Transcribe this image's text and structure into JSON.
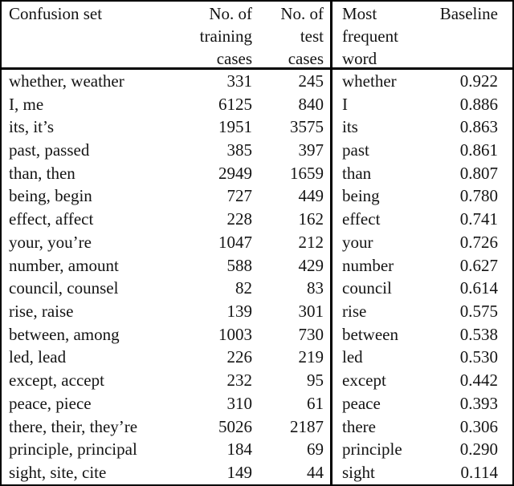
{
  "colors": {
    "background": "#ffffff",
    "text": "#141414",
    "border": "#000000"
  },
  "table": {
    "header": {
      "confusion_set": "Confusion set",
      "no_training": [
        "No. of",
        "training",
        "cases"
      ],
      "no_test": [
        "No. of",
        "test",
        "cases"
      ],
      "most_frequent": [
        "Most",
        "frequent",
        "word"
      ],
      "baseline": "Baseline"
    },
    "rows": [
      {
        "confusion_set": "whether, weather",
        "training_cases": "331",
        "test_cases": "245",
        "most_frequent_word": "whether",
        "baseline": "0.922"
      },
      {
        "confusion_set": "I, me",
        "training_cases": "6125",
        "test_cases": "840",
        "most_frequent_word": "I",
        "baseline": "0.886"
      },
      {
        "confusion_set": "its, it’s",
        "training_cases": "1951",
        "test_cases": "3575",
        "most_frequent_word": "its",
        "baseline": "0.863"
      },
      {
        "confusion_set": "past, passed",
        "training_cases": "385",
        "test_cases": "397",
        "most_frequent_word": "past",
        "baseline": "0.861"
      },
      {
        "confusion_set": "than, then",
        "training_cases": "2949",
        "test_cases": "1659",
        "most_frequent_word": "than",
        "baseline": "0.807"
      },
      {
        "confusion_set": "being, begin",
        "training_cases": "727",
        "test_cases": "449",
        "most_frequent_word": "being",
        "baseline": "0.780"
      },
      {
        "confusion_set": "effect, affect",
        "training_cases": "228",
        "test_cases": "162",
        "most_frequent_word": "effect",
        "baseline": "0.741"
      },
      {
        "confusion_set": "your, you’re",
        "training_cases": "1047",
        "test_cases": "212",
        "most_frequent_word": "your",
        "baseline": "0.726"
      },
      {
        "confusion_set": "number, amount",
        "training_cases": "588",
        "test_cases": "429",
        "most_frequent_word": "number",
        "baseline": "0.627"
      },
      {
        "confusion_set": "council, counsel",
        "training_cases": "82",
        "test_cases": "83",
        "most_frequent_word": "council",
        "baseline": "0.614"
      },
      {
        "confusion_set": "rise, raise",
        "training_cases": "139",
        "test_cases": "301",
        "most_frequent_word": "rise",
        "baseline": "0.575"
      },
      {
        "confusion_set": "between, among",
        "training_cases": "1003",
        "test_cases": "730",
        "most_frequent_word": "between",
        "baseline": "0.538"
      },
      {
        "confusion_set": "led, lead",
        "training_cases": "226",
        "test_cases": "219",
        "most_frequent_word": "led",
        "baseline": "0.530"
      },
      {
        "confusion_set": "except, accept",
        "training_cases": "232",
        "test_cases": "95",
        "most_frequent_word": "except",
        "baseline": "0.442"
      },
      {
        "confusion_set": "peace, piece",
        "training_cases": "310",
        "test_cases": "61",
        "most_frequent_word": "peace",
        "baseline": "0.393"
      },
      {
        "confusion_set": "there, their, they’re",
        "training_cases": "5026",
        "test_cases": "2187",
        "most_frequent_word": "there",
        "baseline": "0.306"
      },
      {
        "confusion_set": "principle, principal",
        "training_cases": "184",
        "test_cases": "69",
        "most_frequent_word": "principle",
        "baseline": "0.290"
      },
      {
        "confusion_set": "sight, site, cite",
        "training_cases": "149",
        "test_cases": "44",
        "most_frequent_word": "sight",
        "baseline": "0.114"
      }
    ]
  }
}
